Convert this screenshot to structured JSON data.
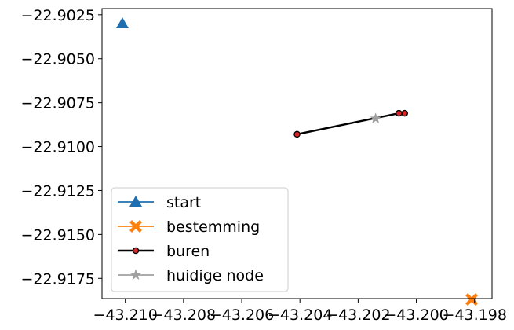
{
  "chart_data": {
    "type": "scatter",
    "xlim": [
      -43.2108,
      -43.1974
    ],
    "ylim": [
      -22.91865,
      -22.90215
    ],
    "x_ticks": [
      -43.21,
      -43.208,
      -43.206,
      -43.204,
      -43.202,
      -43.2,
      -43.198
    ],
    "x_tick_labels": [
      "−43.210",
      "−43.208",
      "−43.206",
      "−43.204",
      "−43.202",
      "−43.200",
      "−43.198"
    ],
    "y_ticks": [
      -22.9025,
      -22.905,
      -22.9075,
      -22.91,
      -22.9125,
      -22.915,
      -22.9175
    ],
    "y_tick_labels": [
      "−22.9025",
      "−22.9050",
      "−22.9075",
      "−22.9100",
      "−22.9125",
      "−22.9150",
      "−22.9175"
    ],
    "grid": false,
    "legend_position": "lower-left",
    "series": [
      {
        "name": "start",
        "marker": "triangle",
        "color": "#1f6fb0",
        "line": false,
        "points": [
          [
            -43.2101,
            -22.903
          ]
        ]
      },
      {
        "name": "bestemming",
        "marker": "x-filled",
        "color": "#ff7f0e",
        "line": false,
        "points": [
          [
            -43.1981,
            -22.9187
          ]
        ]
      },
      {
        "name": "buren",
        "marker": "circle",
        "color": "#d62728",
        "edge_color": "#000000",
        "line": true,
        "line_color": "#000000",
        "points": [
          [
            -43.2041,
            -22.9093
          ],
          [
            -43.2006,
            -22.9081
          ],
          [
            -43.2004,
            -22.9081
          ]
        ]
      },
      {
        "name": "huidige node",
        "marker": "star",
        "color": "#a0a0a0",
        "line": false,
        "points": [
          [
            -43.2014,
            -22.9084
          ]
        ]
      }
    ],
    "line_segment": [
      [
        -43.2041,
        -22.9093
      ],
      [
        -43.2006,
        -22.9081
      ]
    ]
  }
}
